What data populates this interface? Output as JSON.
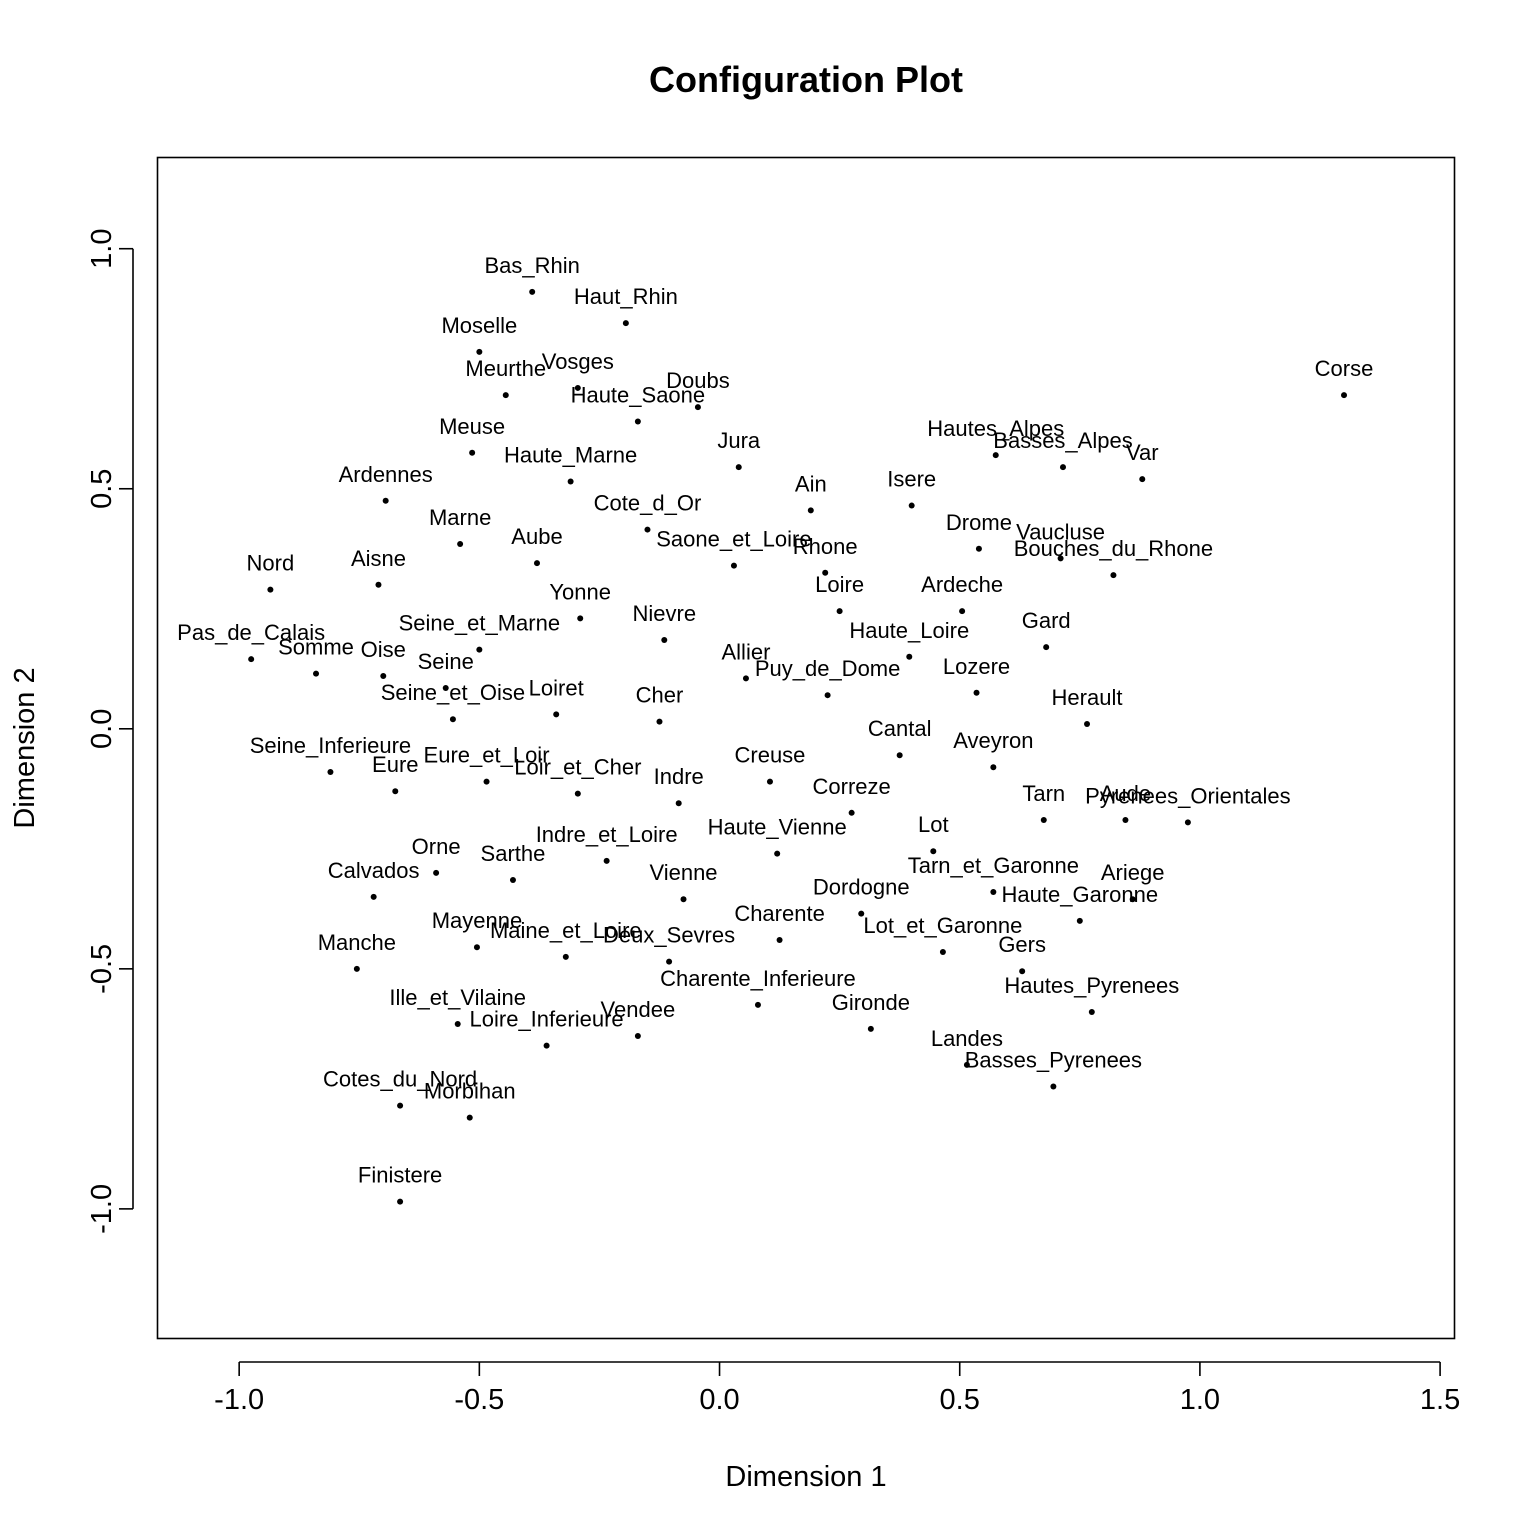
{
  "chart_data": {
    "type": "scatter",
    "title": "Configuration Plot",
    "xlabel": "Dimension 1",
    "ylabel": "Dimension 2",
    "xlim": [
      -1.17,
      1.53
    ],
    "ylim": [
      -1.27,
      1.19
    ],
    "xticks": [
      -1.0,
      -0.5,
      0.0,
      0.5,
      1.0,
      1.5
    ],
    "yticks": [
      -1.0,
      -0.5,
      0.0,
      0.5,
      1.0
    ],
    "xtick_labels": [
      "-1.0",
      "-0.5",
      "0.0",
      "0.5",
      "1.0",
      "1.5"
    ],
    "ytick_labels": [
      "-1.0",
      "-0.5",
      "0.0",
      "0.5",
      "1.0"
    ],
    "grid": false,
    "legend": "none",
    "points": [
      {
        "label": "Bas_Rhin",
        "x": -0.39,
        "y": 0.91
      },
      {
        "label": "Haut_Rhin",
        "x": -0.195,
        "y": 0.845
      },
      {
        "label": "Moselle",
        "x": -0.5,
        "y": 0.785
      },
      {
        "label": "Meurthe",
        "x": -0.445,
        "y": 0.695
      },
      {
        "label": "Vosges",
        "x": -0.295,
        "y": 0.71
      },
      {
        "label": "Doubs",
        "x": -0.045,
        "y": 0.67
      },
      {
        "label": "Haute_Saone",
        "x": -0.17,
        "y": 0.64
      },
      {
        "label": "Meuse",
        "x": -0.515,
        "y": 0.575
      },
      {
        "label": "Haute_Marne",
        "x": -0.31,
        "y": 0.515
      },
      {
        "label": "Jura",
        "x": 0.04,
        "y": 0.545
      },
      {
        "label": "Ardennes",
        "x": -0.695,
        "y": 0.475
      },
      {
        "label": "Ain",
        "x": 0.19,
        "y": 0.455
      },
      {
        "label": "Isere",
        "x": 0.4,
        "y": 0.465
      },
      {
        "label": "Hautes_Alpes",
        "x": 0.575,
        "y": 0.57
      },
      {
        "label": "Basses_Alpes",
        "x": 0.715,
        "y": 0.545
      },
      {
        "label": "Var",
        "x": 0.88,
        "y": 0.52
      },
      {
        "label": "Corse",
        "x": 1.3,
        "y": 0.695
      },
      {
        "label": "Cote_d_Or",
        "x": -0.15,
        "y": 0.415
      },
      {
        "label": "Marne",
        "x": -0.54,
        "y": 0.385
      },
      {
        "label": "Aube",
        "x": -0.38,
        "y": 0.345
      },
      {
        "label": "Saone_et_Loire",
        "x": 0.03,
        "y": 0.34
      },
      {
        "label": "Rhone",
        "x": 0.22,
        "y": 0.325
      },
      {
        "label": "Drome",
        "x": 0.54,
        "y": 0.375
      },
      {
        "label": "Vaucluse",
        "x": 0.71,
        "y": 0.355
      },
      {
        "label": "Bouches_du_Rhone",
        "x": 0.82,
        "y": 0.32
      },
      {
        "label": "Nord",
        "x": -0.935,
        "y": 0.29
      },
      {
        "label": "Aisne",
        "x": -0.71,
        "y": 0.3
      },
      {
        "label": "Yonne",
        "x": -0.29,
        "y": 0.23
      },
      {
        "label": "Loire",
        "x": 0.25,
        "y": 0.245
      },
      {
        "label": "Ardeche",
        "x": 0.505,
        "y": 0.245
      },
      {
        "label": "Nievre",
        "x": -0.115,
        "y": 0.185
      },
      {
        "label": "Gard",
        "x": 0.68,
        "y": 0.17
      },
      {
        "label": "Haute_Loire",
        "x": 0.395,
        "y": 0.15
      },
      {
        "label": "Seine_et_Marne",
        "x": -0.5,
        "y": 0.165
      },
      {
        "label": "Pas_de_Calais",
        "x": -0.975,
        "y": 0.145
      },
      {
        "label": "Somme",
        "x": -0.84,
        "y": 0.115
      },
      {
        "label": "Oise",
        "x": -0.7,
        "y": 0.11
      },
      {
        "label": "Seine",
        "x": -0.57,
        "y": 0.085
      },
      {
        "label": "Allier",
        "x": 0.055,
        "y": 0.105
      },
      {
        "label": "Puy_de_Dome",
        "x": 0.225,
        "y": 0.07
      },
      {
        "label": "Lozere",
        "x": 0.535,
        "y": 0.075
      },
      {
        "label": "Seine_et_Oise",
        "x": -0.555,
        "y": 0.02
      },
      {
        "label": "Loiret",
        "x": -0.34,
        "y": 0.03
      },
      {
        "label": "Cher",
        "x": -0.125,
        "y": 0.015
      },
      {
        "label": "Herault",
        "x": 0.765,
        "y": 0.01
      },
      {
        "label": "Cantal",
        "x": 0.375,
        "y": -0.055
      },
      {
        "label": "Aveyron",
        "x": 0.57,
        "y": -0.08
      },
      {
        "label": "Seine_Inferieure",
        "x": -0.81,
        "y": -0.09
      },
      {
        "label": "Eure_et_Loir",
        "x": -0.485,
        "y": -0.11
      },
      {
        "label": "Eure",
        "x": -0.675,
        "y": -0.13
      },
      {
        "label": "Loir_et_Cher",
        "x": -0.295,
        "y": -0.135
      },
      {
        "label": "Creuse",
        "x": 0.105,
        "y": -0.11
      },
      {
        "label": "Indre",
        "x": -0.085,
        "y": -0.155
      },
      {
        "label": "Correze",
        "x": 0.275,
        "y": -0.175
      },
      {
        "label": "Tarn",
        "x": 0.675,
        "y": -0.19
      },
      {
        "label": "Aude",
        "x": 0.845,
        "y": -0.19
      },
      {
        "label": "Pyrenees_Orientales",
        "x": 0.975,
        "y": -0.195
      },
      {
        "label": "Haute_Vienne",
        "x": 0.12,
        "y": -0.26
      },
      {
        "label": "Lot",
        "x": 0.445,
        "y": -0.255
      },
      {
        "label": "Indre_et_Loire",
        "x": -0.235,
        "y": -0.275
      },
      {
        "label": "Orne",
        "x": -0.59,
        "y": -0.3
      },
      {
        "label": "Sarthe",
        "x": -0.43,
        "y": -0.315
      },
      {
        "label": "Calvados",
        "x": -0.72,
        "y": -0.35
      },
      {
        "label": "Vienne",
        "x": -0.075,
        "y": -0.355
      },
      {
        "label": "Tarn_et_Garonne",
        "x": 0.57,
        "y": -0.34
      },
      {
        "label": "Ariege",
        "x": 0.86,
        "y": -0.355
      },
      {
        "label": "Haute_Garonne",
        "x": 0.75,
        "y": -0.4
      },
      {
        "label": "Dordogne",
        "x": 0.295,
        "y": -0.385
      },
      {
        "label": "Charente",
        "x": 0.125,
        "y": -0.44
      },
      {
        "label": "Mayenne",
        "x": -0.505,
        "y": -0.455
      },
      {
        "label": "Maine_et_Loire",
        "x": -0.32,
        "y": -0.475
      },
      {
        "label": "Deux_Sevres",
        "x": -0.105,
        "y": -0.485
      },
      {
        "label": "Lot_et_Garonne",
        "x": 0.465,
        "y": -0.465
      },
      {
        "label": "Gers",
        "x": 0.63,
        "y": -0.505
      },
      {
        "label": "Manche",
        "x": -0.755,
        "y": -0.5
      },
      {
        "label": "Charente_Inferieure",
        "x": 0.08,
        "y": -0.575
      },
      {
        "label": "Hautes_Pyrenees",
        "x": 0.775,
        "y": -0.59
      },
      {
        "label": "Ille_et_Vilaine",
        "x": -0.545,
        "y": -0.615
      },
      {
        "label": "Gironde",
        "x": 0.315,
        "y": -0.625
      },
      {
        "label": "Vendee",
        "x": -0.17,
        "y": -0.64
      },
      {
        "label": "Loire_Inferieure",
        "x": -0.36,
        "y": -0.66
      },
      {
        "label": "Landes",
        "x": 0.515,
        "y": -0.7
      },
      {
        "label": "Basses_Pyrenees",
        "x": 0.695,
        "y": -0.745
      },
      {
        "label": "Cotes_du_Nord",
        "x": -0.665,
        "y": -0.785
      },
      {
        "label": "Morbihan",
        "x": -0.52,
        "y": -0.81
      },
      {
        "label": "Finistere",
        "x": -0.665,
        "y": -0.985
      }
    ]
  }
}
